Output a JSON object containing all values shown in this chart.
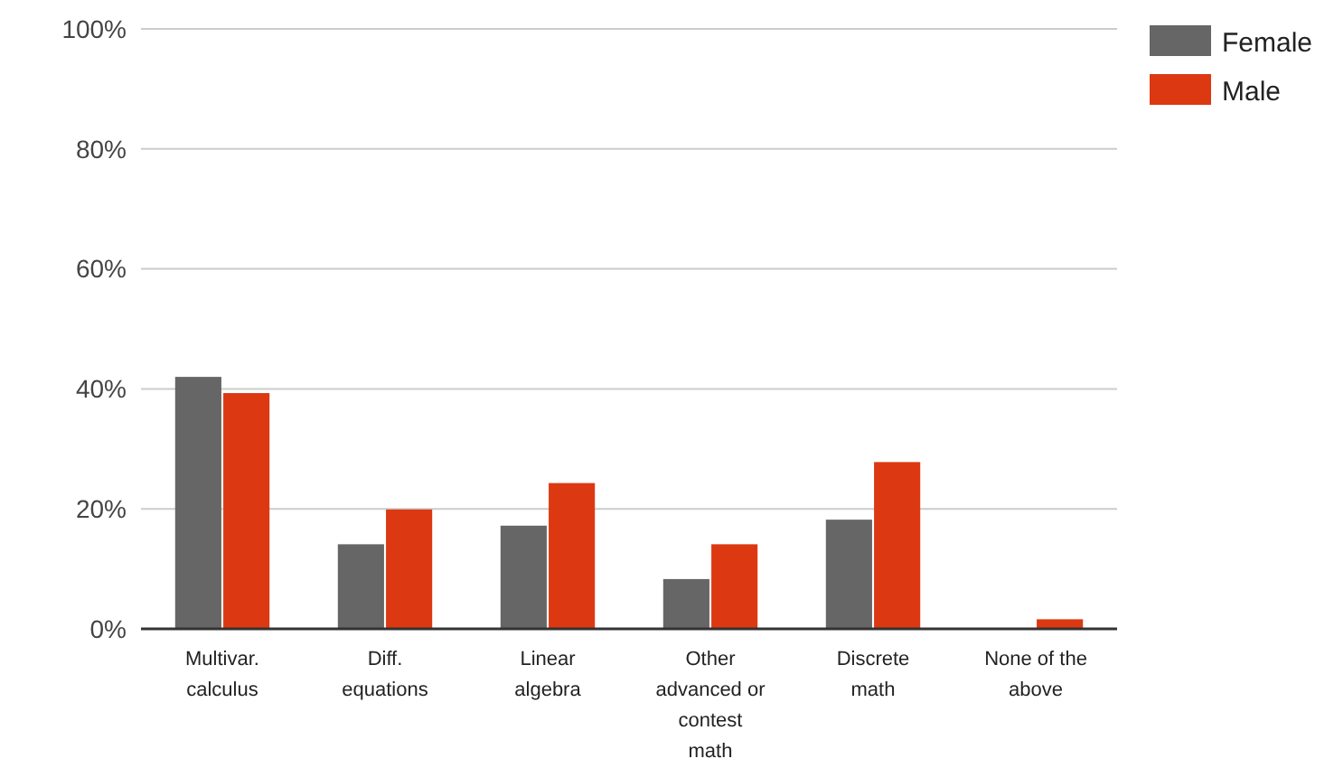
{
  "chart_data": {
    "type": "bar",
    "categories": [
      "Multivar. calculus",
      "Diff. equations",
      "Linear algebra",
      "Other advanced or contest math",
      "Discrete math",
      "None of the above"
    ],
    "series": [
      {
        "name": "Female",
        "color": "#666666",
        "values": [
          42.0,
          14.1,
          17.2,
          8.3,
          18.2,
          0
        ]
      },
      {
        "name": "Male",
        "color": "#dc3912",
        "values": [
          39.3,
          19.9,
          24.3,
          14.1,
          27.8,
          1.6
        ]
      }
    ],
    "ylim": [
      0,
      100
    ],
    "yticks": [
      {
        "value": 0,
        "label": "0%"
      },
      {
        "value": 20,
        "label": "20%"
      },
      {
        "value": 40,
        "label": "40%"
      },
      {
        "value": 60,
        "label": "60%"
      },
      {
        "value": 80,
        "label": "80%"
      },
      {
        "value": 100,
        "label": "100%"
      }
    ],
    "grid": "y",
    "legend": "right"
  }
}
